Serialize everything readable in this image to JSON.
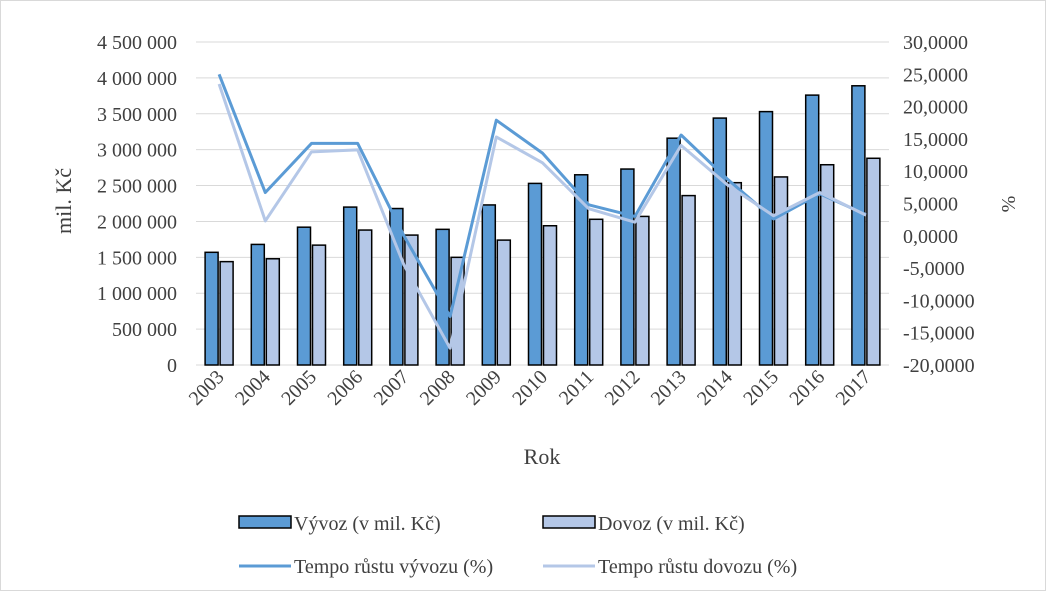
{
  "chart_data": {
    "type": "bar",
    "title": "",
    "xlabel": "Rok",
    "ylabel": "mil. Kč",
    "y2label": "%",
    "categories": [
      "2003",
      "2004",
      "2005",
      "2006",
      "2007",
      "2008",
      "2009",
      "2010",
      "2011",
      "2012",
      "2013",
      "2014",
      "2015",
      "2016",
      "2017"
    ],
    "ylim": [
      0,
      4500000
    ],
    "y2lim": [
      -20,
      30
    ],
    "y_ticks": [
      "0",
      "500 000",
      "1 000 000",
      "1 500 000",
      "2 000 000",
      "2 500 000",
      "3 000 000",
      "3 500 000",
      "4 000 000",
      "4 500 000"
    ],
    "y2_ticks": [
      "-20,0000",
      "-15,0000",
      "-10,0000",
      "-5,0000",
      "0,0000",
      "5,0000",
      "10,0000",
      "15,0000",
      "20,0000",
      "25,0000",
      "30,0000"
    ],
    "grid": true,
    "legend_position": "bottom",
    "series": [
      {
        "name": "Vývoz (v mil. Kč)",
        "type": "bar",
        "axis": "left",
        "color": "#5b9bd5",
        "values": [
          1570000,
          1680000,
          1920000,
          2200000,
          2180000,
          1890000,
          2230000,
          2530000,
          2650000,
          2730000,
          3160000,
          3440000,
          3530000,
          3760000,
          3890000
        ]
      },
      {
        "name": "Dovoz (v mil. Kč)",
        "type": "bar",
        "axis": "left",
        "color": "#b4c7e7",
        "values": [
          1440000,
          1480000,
          1670000,
          1880000,
          1810000,
          1500000,
          1740000,
          1940000,
          2030000,
          2070000,
          2360000,
          2540000,
          2620000,
          2790000,
          2880000
        ]
      },
      {
        "name": "Tempo růstu vývozu (%)",
        "type": "line",
        "axis": "right",
        "color": "#5b9bd5",
        "values": [
          25.0,
          6.7,
          14.3,
          14.3,
          0.0,
          -12.5,
          17.9,
          12.8,
          4.8,
          3.0,
          15.6,
          8.8,
          2.6,
          6.5,
          3.3
        ]
      },
      {
        "name": "Tempo růstu dovozu (%)",
        "type": "line",
        "axis": "right",
        "color": "#b4c7e7",
        "values": [
          23.5,
          2.3,
          13.0,
          13.3,
          -4.5,
          -17.4,
          15.3,
          11.3,
          4.2,
          2.1,
          14.0,
          7.9,
          3.1,
          6.7,
          3.2
        ]
      }
    ]
  }
}
